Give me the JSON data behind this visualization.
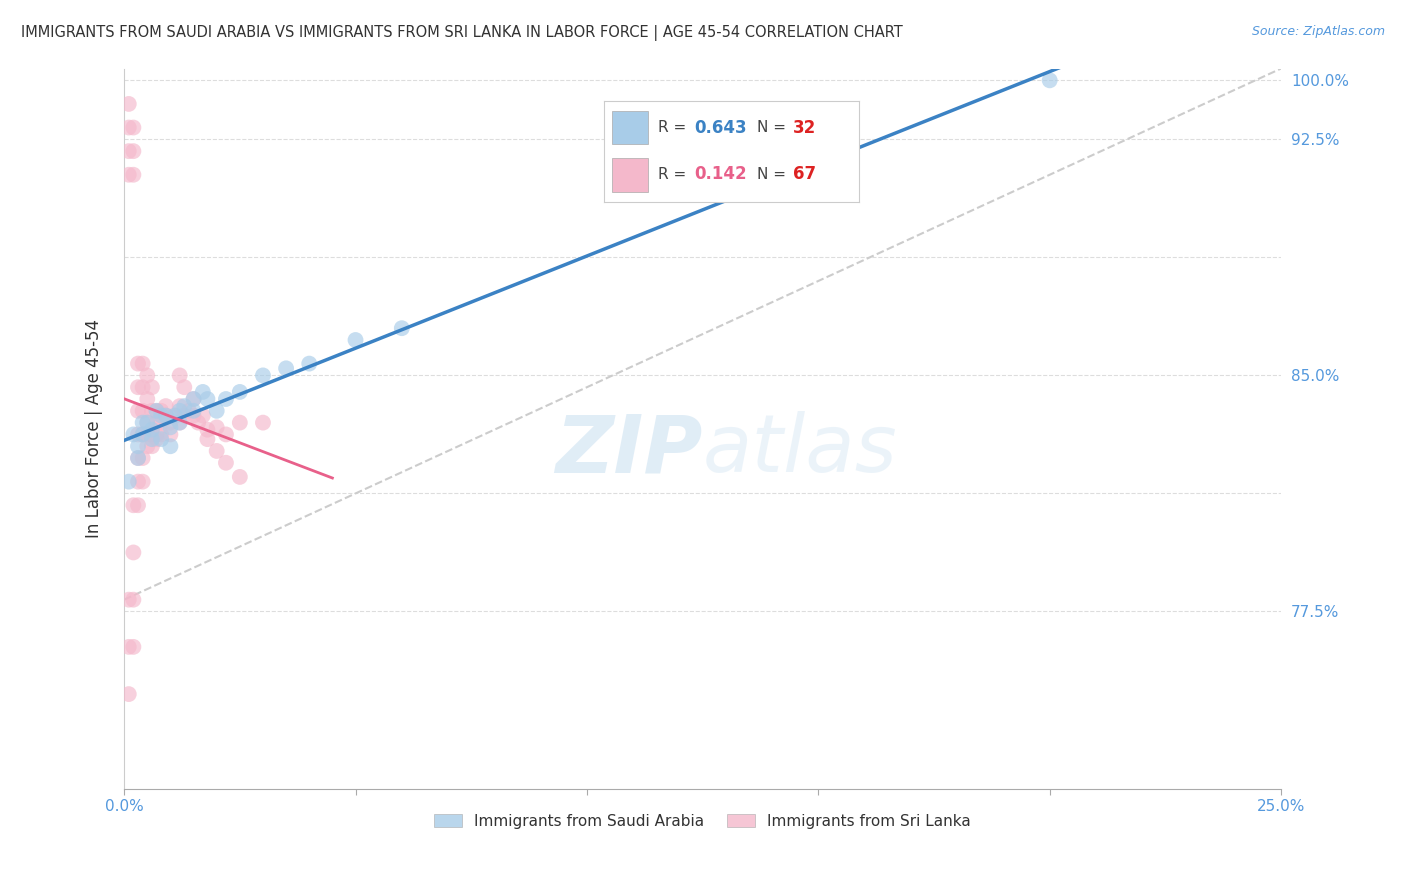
{
  "title": "IMMIGRANTS FROM SAUDI ARABIA VS IMMIGRANTS FROM SRI LANKA IN LABOR FORCE | AGE 45-54 CORRELATION CHART",
  "source": "Source: ZipAtlas.com",
  "ylabel": "In Labor Force | Age 45-54",
  "xlim": [
    0.0,
    0.25
  ],
  "ylim": [
    0.7,
    1.005
  ],
  "saudi_R": 0.643,
  "saudi_N": 32,
  "srilanka_R": 0.142,
  "srilanka_N": 67,
  "saudi_color": "#a8cce8",
  "srilanka_color": "#f4b8cb",
  "saudi_line_color": "#3b82c4",
  "srilanka_line_color": "#e8608a",
  "diagonal_color": "#cccccc",
  "background_color": "#ffffff",
  "grid_color": "#dddddd",
  "watermark_zip": "ZIP",
  "watermark_atlas": "atlas",
  "tick_color": "#5599dd",
  "saudi_x": [
    0.001,
    0.002,
    0.003,
    0.004,
    0.005,
    0.006,
    0.007,
    0.008,
    0.009,
    0.01,
    0.011,
    0.012,
    0.013,
    0.015,
    0.017,
    0.018,
    0.02,
    0.022,
    0.025,
    0.03,
    0.035,
    0.04,
    0.05,
    0.06,
    0.003,
    0.004,
    0.006,
    0.008,
    0.01,
    0.012,
    0.015,
    0.2
  ],
  "saudi_y": [
    0.83,
    0.85,
    0.845,
    0.855,
    0.855,
    0.852,
    0.86,
    0.858,
    0.858,
    0.853,
    0.858,
    0.86,
    0.862,
    0.865,
    0.868,
    0.865,
    0.86,
    0.865,
    0.868,
    0.875,
    0.878,
    0.88,
    0.89,
    0.895,
    0.84,
    0.85,
    0.848,
    0.848,
    0.845,
    0.855,
    0.86,
    1.0
  ],
  "srilanka_x": [
    0.001,
    0.001,
    0.001,
    0.001,
    0.002,
    0.002,
    0.002,
    0.002,
    0.002,
    0.003,
    0.003,
    0.003,
    0.003,
    0.003,
    0.004,
    0.004,
    0.004,
    0.004,
    0.005,
    0.005,
    0.005,
    0.005,
    0.006,
    0.006,
    0.006,
    0.007,
    0.007,
    0.007,
    0.008,
    0.008,
    0.008,
    0.009,
    0.009,
    0.01,
    0.01,
    0.011,
    0.012,
    0.012,
    0.013,
    0.014,
    0.015,
    0.016,
    0.017,
    0.018,
    0.02,
    0.022,
    0.025,
    0.001,
    0.001,
    0.001,
    0.002,
    0.002,
    0.003,
    0.003,
    0.004,
    0.004,
    0.005,
    0.006,
    0.007,
    0.012,
    0.013,
    0.015,
    0.018,
    0.02,
    0.022,
    0.025,
    0.03
  ],
  "srilanka_y": [
    0.96,
    0.97,
    0.98,
    0.99,
    0.96,
    0.97,
    0.98,
    0.82,
    0.8,
    0.87,
    0.86,
    0.85,
    0.84,
    0.88,
    0.87,
    0.86,
    0.85,
    0.88,
    0.865,
    0.855,
    0.845,
    0.875,
    0.86,
    0.85,
    0.87,
    0.86,
    0.855,
    0.85,
    0.86,
    0.855,
    0.85,
    0.858,
    0.862,
    0.855,
    0.85,
    0.858,
    0.855,
    0.862,
    0.858,
    0.86,
    0.858,
    0.855,
    0.858,
    0.852,
    0.853,
    0.85,
    0.855,
    0.78,
    0.76,
    0.74,
    0.78,
    0.76,
    0.83,
    0.82,
    0.84,
    0.83,
    0.85,
    0.845,
    0.848,
    0.875,
    0.87,
    0.865,
    0.848,
    0.843,
    0.838,
    0.832,
    0.855
  ]
}
